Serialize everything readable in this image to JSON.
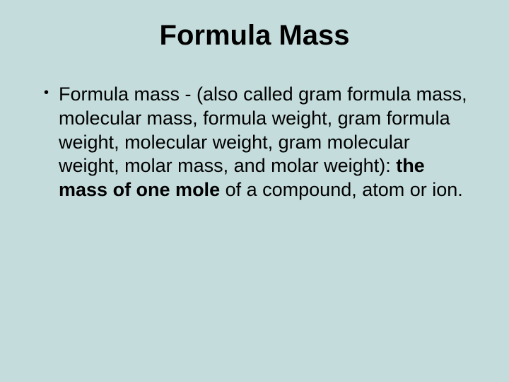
{
  "slide": {
    "background_color": "#c4dcdc",
    "text_color": "#000000",
    "title": {
      "text": "Formula Mass",
      "fontsize": 40,
      "weight": "bold",
      "align": "center"
    },
    "bullet": {
      "glyph": "•",
      "lead": "Formula mass - (also called gram formula mass, molecular mass, formula weight, gram formula weight, molecular weight, gram molecular weight, molar mass, and molar weight):  ",
      "bold_phrase": "the mass of one mole",
      "tail": " of a compound, atom or ion.",
      "fontsize": 27
    }
  }
}
